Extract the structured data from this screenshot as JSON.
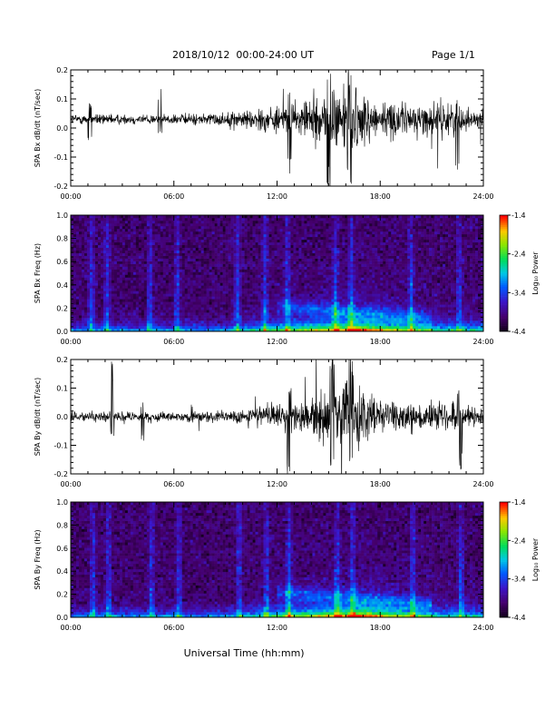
{
  "header": {
    "title": "2018/10/12  00:00-24:00 UT",
    "page": "Page 1/1"
  },
  "chart_data": [
    {
      "type": "line",
      "ylabel": "SPA Bx dB/dt (nT/sec)",
      "xlabel": "",
      "xlim": [
        "00:00",
        "24:00"
      ],
      "ylim": [
        -0.2,
        0.2
      ],
      "x_tick_labels": [
        "00:00",
        "06:00",
        "12:00",
        "18:00",
        "24:00"
      ],
      "y_tick_labels": [
        "-0.2",
        "-0.1",
        "0.0",
        "0.1",
        "0.2"
      ],
      "y_ticks": [
        -0.2,
        -0.1,
        0.0,
        0.1,
        0.2
      ],
      "baseline": 0.03,
      "noise_envelope": [
        {
          "hour": 0,
          "amp": 0.03
        },
        {
          "hour": 3,
          "amp": 0.03
        },
        {
          "hour": 6,
          "amp": 0.03
        },
        {
          "hour": 9,
          "amp": 0.04
        },
        {
          "hour": 11,
          "amp": 0.07
        },
        {
          "hour": 13,
          "amp": 0.09
        },
        {
          "hour": 14.5,
          "amp": 0.15
        },
        {
          "hour": 16,
          "amp": 0.25
        },
        {
          "hour": 17.5,
          "amp": 0.12
        },
        {
          "hour": 20,
          "amp": 0.09
        },
        {
          "hour": 22,
          "amp": 0.1
        },
        {
          "hour": 24,
          "amp": 0.05
        }
      ],
      "spikes": [
        {
          "hour": 1.1,
          "min": -0.05,
          "max": 0.09
        },
        {
          "hour": 5.2,
          "min": -0.02,
          "max": 0.14
        },
        {
          "hour": 12.7,
          "min": -0.16,
          "max": 0.13
        },
        {
          "hour": 15.0,
          "min": -0.22,
          "max": 0.22
        },
        {
          "hour": 16.2,
          "min": -0.22,
          "max": 0.22
        },
        {
          "hour": 22.5,
          "min": -0.2,
          "max": 0.1
        }
      ]
    },
    {
      "type": "heatmap",
      "ylabel": "SPA Bx Freq (Hz)",
      "xlabel": "",
      "xlim": [
        "00:00",
        "24:00"
      ],
      "ylim": [
        0.0,
        1.0
      ],
      "x_tick_labels": [
        "00:00",
        "06:00",
        "12:00",
        "18:00",
        "24:00"
      ],
      "y_tick_labels": [
        "0.0",
        "0.2",
        "0.4",
        "0.6",
        "0.8",
        "1.0"
      ],
      "y_ticks": [
        0.0,
        0.2,
        0.4,
        0.6,
        0.8,
        1.0
      ],
      "colorbar": {
        "label": "Log₁₀ Power",
        "range": [
          -4.4,
          -1.4
        ],
        "tick_labels": [
          "-1.4",
          "-2.4",
          "-3.4",
          "-4.4"
        ],
        "ticks": [
          -1.4,
          -2.4,
          -3.4,
          -4.4
        ]
      },
      "background_level": -4.05,
      "bright_columns_hours": [
        1.2,
        2.1,
        4.6,
        6.2,
        9.7,
        11.3,
        12.6,
        15.4,
        16.3,
        19.8,
        22.6
      ]
    },
    {
      "type": "line",
      "ylabel": "SPA By dB/dt (nT/sec)",
      "xlabel": "",
      "xlim": [
        "00:00",
        "24:00"
      ],
      "ylim": [
        -0.2,
        0.2
      ],
      "x_tick_labels": [
        "00:00",
        "06:00",
        "12:00",
        "18:00",
        "24:00"
      ],
      "y_tick_labels": [
        "-0.2",
        "-0.1",
        "0.0",
        "0.1",
        "0.2"
      ],
      "y_ticks": [
        -0.2,
        -0.1,
        0.0,
        0.1,
        0.2
      ],
      "baseline": 0.0,
      "noise_envelope": [
        {
          "hour": 0,
          "amp": 0.03
        },
        {
          "hour": 3,
          "amp": 0.03
        },
        {
          "hour": 6,
          "amp": 0.025
        },
        {
          "hour": 9,
          "amp": 0.035
        },
        {
          "hour": 11,
          "amp": 0.06
        },
        {
          "hour": 13,
          "amp": 0.08
        },
        {
          "hour": 14.5,
          "amp": 0.14
        },
        {
          "hour": 16,
          "amp": 0.22
        },
        {
          "hour": 17.5,
          "amp": 0.12
        },
        {
          "hour": 20,
          "amp": 0.08
        },
        {
          "hour": 22,
          "amp": 0.09
        },
        {
          "hour": 24,
          "amp": 0.05
        }
      ],
      "spikes": [
        {
          "hour": 2.4,
          "min": -0.07,
          "max": 0.2
        },
        {
          "hour": 4.2,
          "min": -0.1,
          "max": 0.05
        },
        {
          "hour": 12.7,
          "min": -0.2,
          "max": 0.1
        },
        {
          "hour": 15.2,
          "min": -0.22,
          "max": 0.22
        },
        {
          "hour": 16.3,
          "min": -0.22,
          "max": 0.22
        },
        {
          "hour": 22.6,
          "min": -0.2,
          "max": 0.11
        }
      ]
    },
    {
      "type": "heatmap",
      "ylabel": "SPA By Freq (Hz)",
      "xlabel": "Universal Time (hh:mm)",
      "xlim": [
        "00:00",
        "24:00"
      ],
      "ylim": [
        0.0,
        1.0
      ],
      "x_tick_labels": [
        "00:00",
        "06:00",
        "12:00",
        "18:00",
        "24:00"
      ],
      "y_tick_labels": [
        "0.0",
        "0.2",
        "0.4",
        "0.6",
        "0.8",
        "1.0"
      ],
      "y_ticks": [
        0.0,
        0.2,
        0.4,
        0.6,
        0.8,
        1.0
      ],
      "colorbar": {
        "label": "Log₁₀ Power",
        "range": [
          -4.4,
          -1.4
        ],
        "tick_labels": [
          "-1.4",
          "-2.4",
          "-3.4",
          "-4.4"
        ],
        "ticks": [
          -1.4,
          -2.4,
          -3.4,
          -4.4
        ]
      },
      "background_level": -4.05,
      "bright_columns_hours": [
        1.3,
        2.2,
        4.7,
        6.3,
        9.8,
        11.4,
        12.7,
        15.5,
        16.4,
        19.9,
        22.7
      ]
    }
  ]
}
